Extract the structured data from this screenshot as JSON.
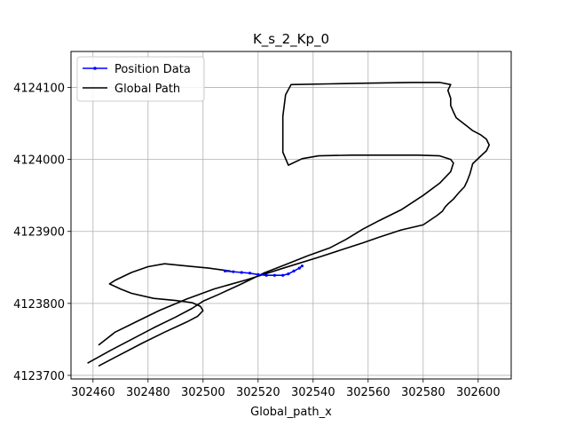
{
  "chart_data": {
    "type": "line",
    "title": "K_s_2_Kp_0",
    "xlabel": "Global_path_x",
    "ylabel": "",
    "xlim": [
      302452,
      302612
    ],
    "ylim": [
      4123695,
      4124150
    ],
    "xticks": [
      302460,
      302480,
      302500,
      302520,
      302540,
      302560,
      302580,
      302600
    ],
    "yticks": [
      4123700,
      4123800,
      4123900,
      4124000,
      4124100
    ],
    "grid": true,
    "legend": "top-left",
    "series": [
      {
        "name": "Position Data",
        "color": "#0000ff",
        "marker": "dot",
        "x": [
          302508,
          302511,
          302514,
          302517,
          302520,
          302523,
          302526,
          302529,
          302531,
          302533,
          302535,
          302536
        ],
        "y": [
          4123845,
          4123844,
          4123843,
          4123842,
          4123840,
          4123839,
          4123839,
          4123839,
          4123841,
          4123845,
          4123849,
          4123852
        ]
      },
      {
        "name": "Global Path",
        "color": "#000000",
        "x": [
          302458,
          302466,
          302474,
          302482,
          302490,
          302496,
          302500,
          302506,
          302514,
          302522,
          302530,
          302538,
          302546,
          302552,
          302558,
          302564,
          302572,
          302580,
          302586,
          302590,
          302591,
          302590,
          302586,
          302578,
          302564,
          302554,
          302542,
          302536,
          302531,
          302529,
          302529,
          302529,
          302530,
          302532,
          302546,
          302560,
          302576,
          302586,
          302590,
          302589,
          302590,
          302590,
          302591,
          302592,
          302594,
          302596,
          302598,
          302601,
          302603,
          302604,
          302603,
          302601,
          302598,
          302597,
          302596,
          302595,
          302593,
          302591,
          302589,
          302588,
          302587,
          302585,
          302580,
          302572,
          302564,
          302558,
          302550,
          302542,
          302530,
          302516,
          302504,
          302494,
          302484,
          302476,
          302468,
          302462
        ],
        "y": [
          4123717,
          4123734,
          4123750,
          4123766,
          4123781,
          4123793,
          4123803,
          4123813,
          4123827,
          4123842,
          4123854,
          4123866,
          4123877,
          4123889,
          4123903,
          4123915,
          4123930,
          4123950,
          4123967,
          4123983,
          4123995,
          4124000,
          4124005,
          4124006,
          4124006,
          4124006,
          4124005,
          4124001,
          4123992,
          4124010,
          4124030,
          4124060,
          4124090,
          4124104,
          4124105,
          4124106,
          4124107,
          4124107,
          4124104,
          4124096,
          4124085,
          4124075,
          4124066,
          4124058,
          4124052,
          4124046,
          4124040,
          4124034,
          4124028,
          4124020,
          4124012,
          4124005,
          4123994,
          4123980,
          4123970,
          4123962,
          4123954,
          4123945,
          4123938,
          4123934,
          4123928,
          4123922,
          4123909,
          4123902,
          4123892,
          4123884,
          4123874,
          4123864,
          4123850,
          4123833,
          4123820,
          4123806,
          4123790,
          4123775,
          4123760,
          4123742
        ]
      },
      {
        "name": "",
        "color": "#000000",
        "x": [
          302462,
          302470,
          302478,
          302486,
          302494,
          302498,
          302500,
          302499,
          302496,
          302490,
          302482,
          302474,
          302470,
          302466,
          302468,
          302474,
          302480,
          302486,
          302494,
          302502,
          302510
        ],
        "y": [
          4123713,
          4123729,
          4123745,
          4123760,
          4123774,
          4123782,
          4123790,
          4123796,
          4123801,
          4123804,
          4123807,
          4123814,
          4123820,
          4123827,
          4123832,
          4123843,
          4123851,
          4123855,
          4123852,
          4123849,
          4123845
        ]
      }
    ]
  }
}
